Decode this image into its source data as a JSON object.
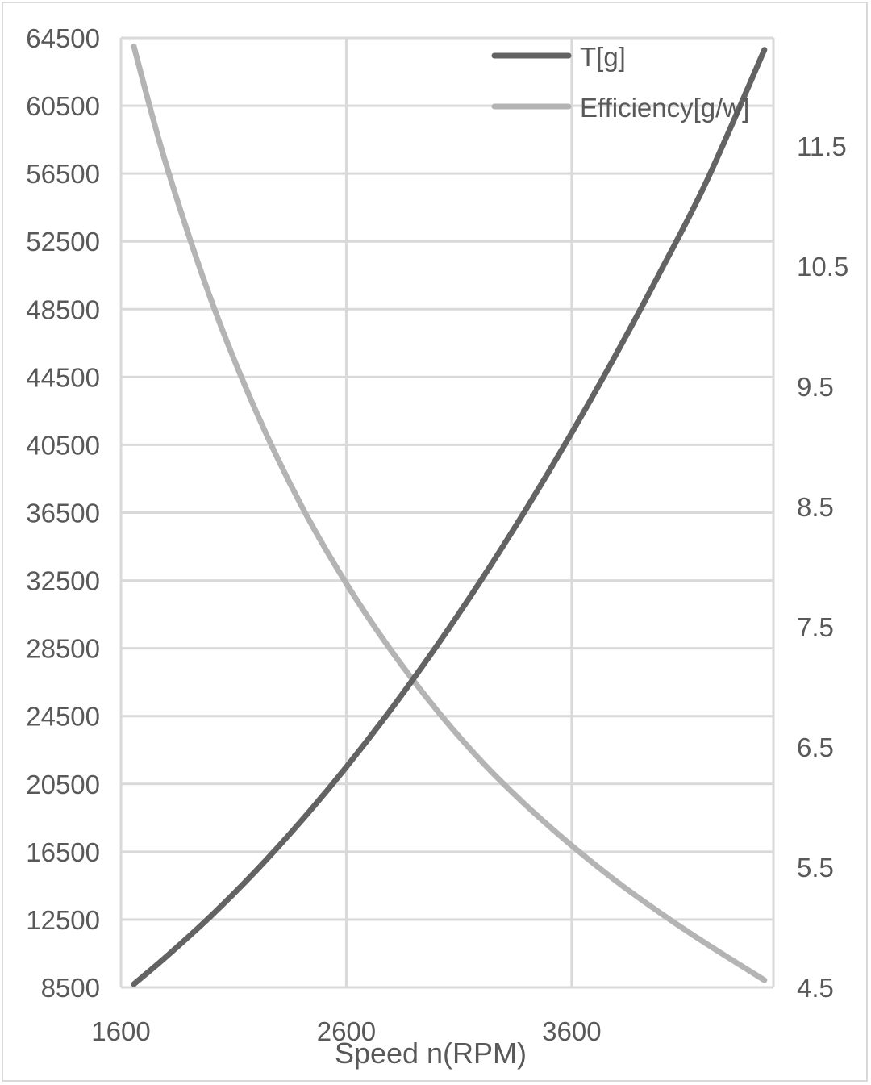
{
  "chart_data": {
    "type": "line",
    "title": "",
    "xlabel": "Speed n(RPM)",
    "ylabel": "",
    "y2label": "",
    "xlim": [
      1600,
      4495
    ],
    "ylim": [
      8500,
      64500
    ],
    "y2lim": [
      4.5,
      12.4
    ],
    "x_ticks": [
      1600,
      2600,
      3600
    ],
    "y_ticks": [
      8500,
      12500,
      16500,
      20500,
      24500,
      28500,
      32500,
      36500,
      40500,
      44500,
      48500,
      52500,
      56500,
      60500,
      64500
    ],
    "y2_ticks": [
      4.5,
      5.5,
      6.5,
      7.5,
      8.5,
      9.5,
      10.5,
      11.5
    ],
    "grid": true,
    "legend_position": "top-right (inside)",
    "x": [
      1657,
      1800,
      2000,
      2200,
      2400,
      2600,
      2800,
      3000,
      3200,
      3400,
      3600,
      3800,
      4000,
      4200,
      4455
    ],
    "series": [
      {
        "name": "T[g]",
        "axis": "left",
        "color": "#636363",
        "values": [
          8690,
          10300,
          12720,
          15390,
          18320,
          21500,
          24930,
          28620,
          32560,
          36760,
          41210,
          45920,
          50880,
          56090,
          63800
        ]
      },
      {
        "name": "Efficiency[g/w]",
        "axis": "right",
        "color": "#b4b4b4",
        "values": [
          12.33,
          11.35,
          10.22,
          9.29,
          8.51,
          7.86,
          7.3,
          6.81,
          6.38,
          6.01,
          5.68,
          5.38,
          5.11,
          4.86,
          4.56
        ]
      }
    ]
  },
  "legend": {
    "items": [
      {
        "label": "T[g]",
        "color": "#636363"
      },
      {
        "label": "Efficiency[g/w]",
        "color": "#b4b4b4"
      }
    ]
  },
  "axes": {
    "x_title": "Speed n(RPM)",
    "x_labels": [
      "1600",
      "2600",
      "3600"
    ],
    "y_labels": [
      "64500",
      "60500",
      "56500",
      "52500",
      "48500",
      "44500",
      "40500",
      "36500",
      "32500",
      "28500",
      "24500",
      "20500",
      "16500",
      "12500",
      "8500"
    ],
    "y2_labels": [
      "11.5",
      "10.5",
      "9.5",
      "8.5",
      "7.5",
      "6.5",
      "5.5",
      "4.5"
    ]
  },
  "colors": {
    "gridline": "#d9d9d9",
    "tick_text": "#595959",
    "frame": "#d9d9d9"
  }
}
